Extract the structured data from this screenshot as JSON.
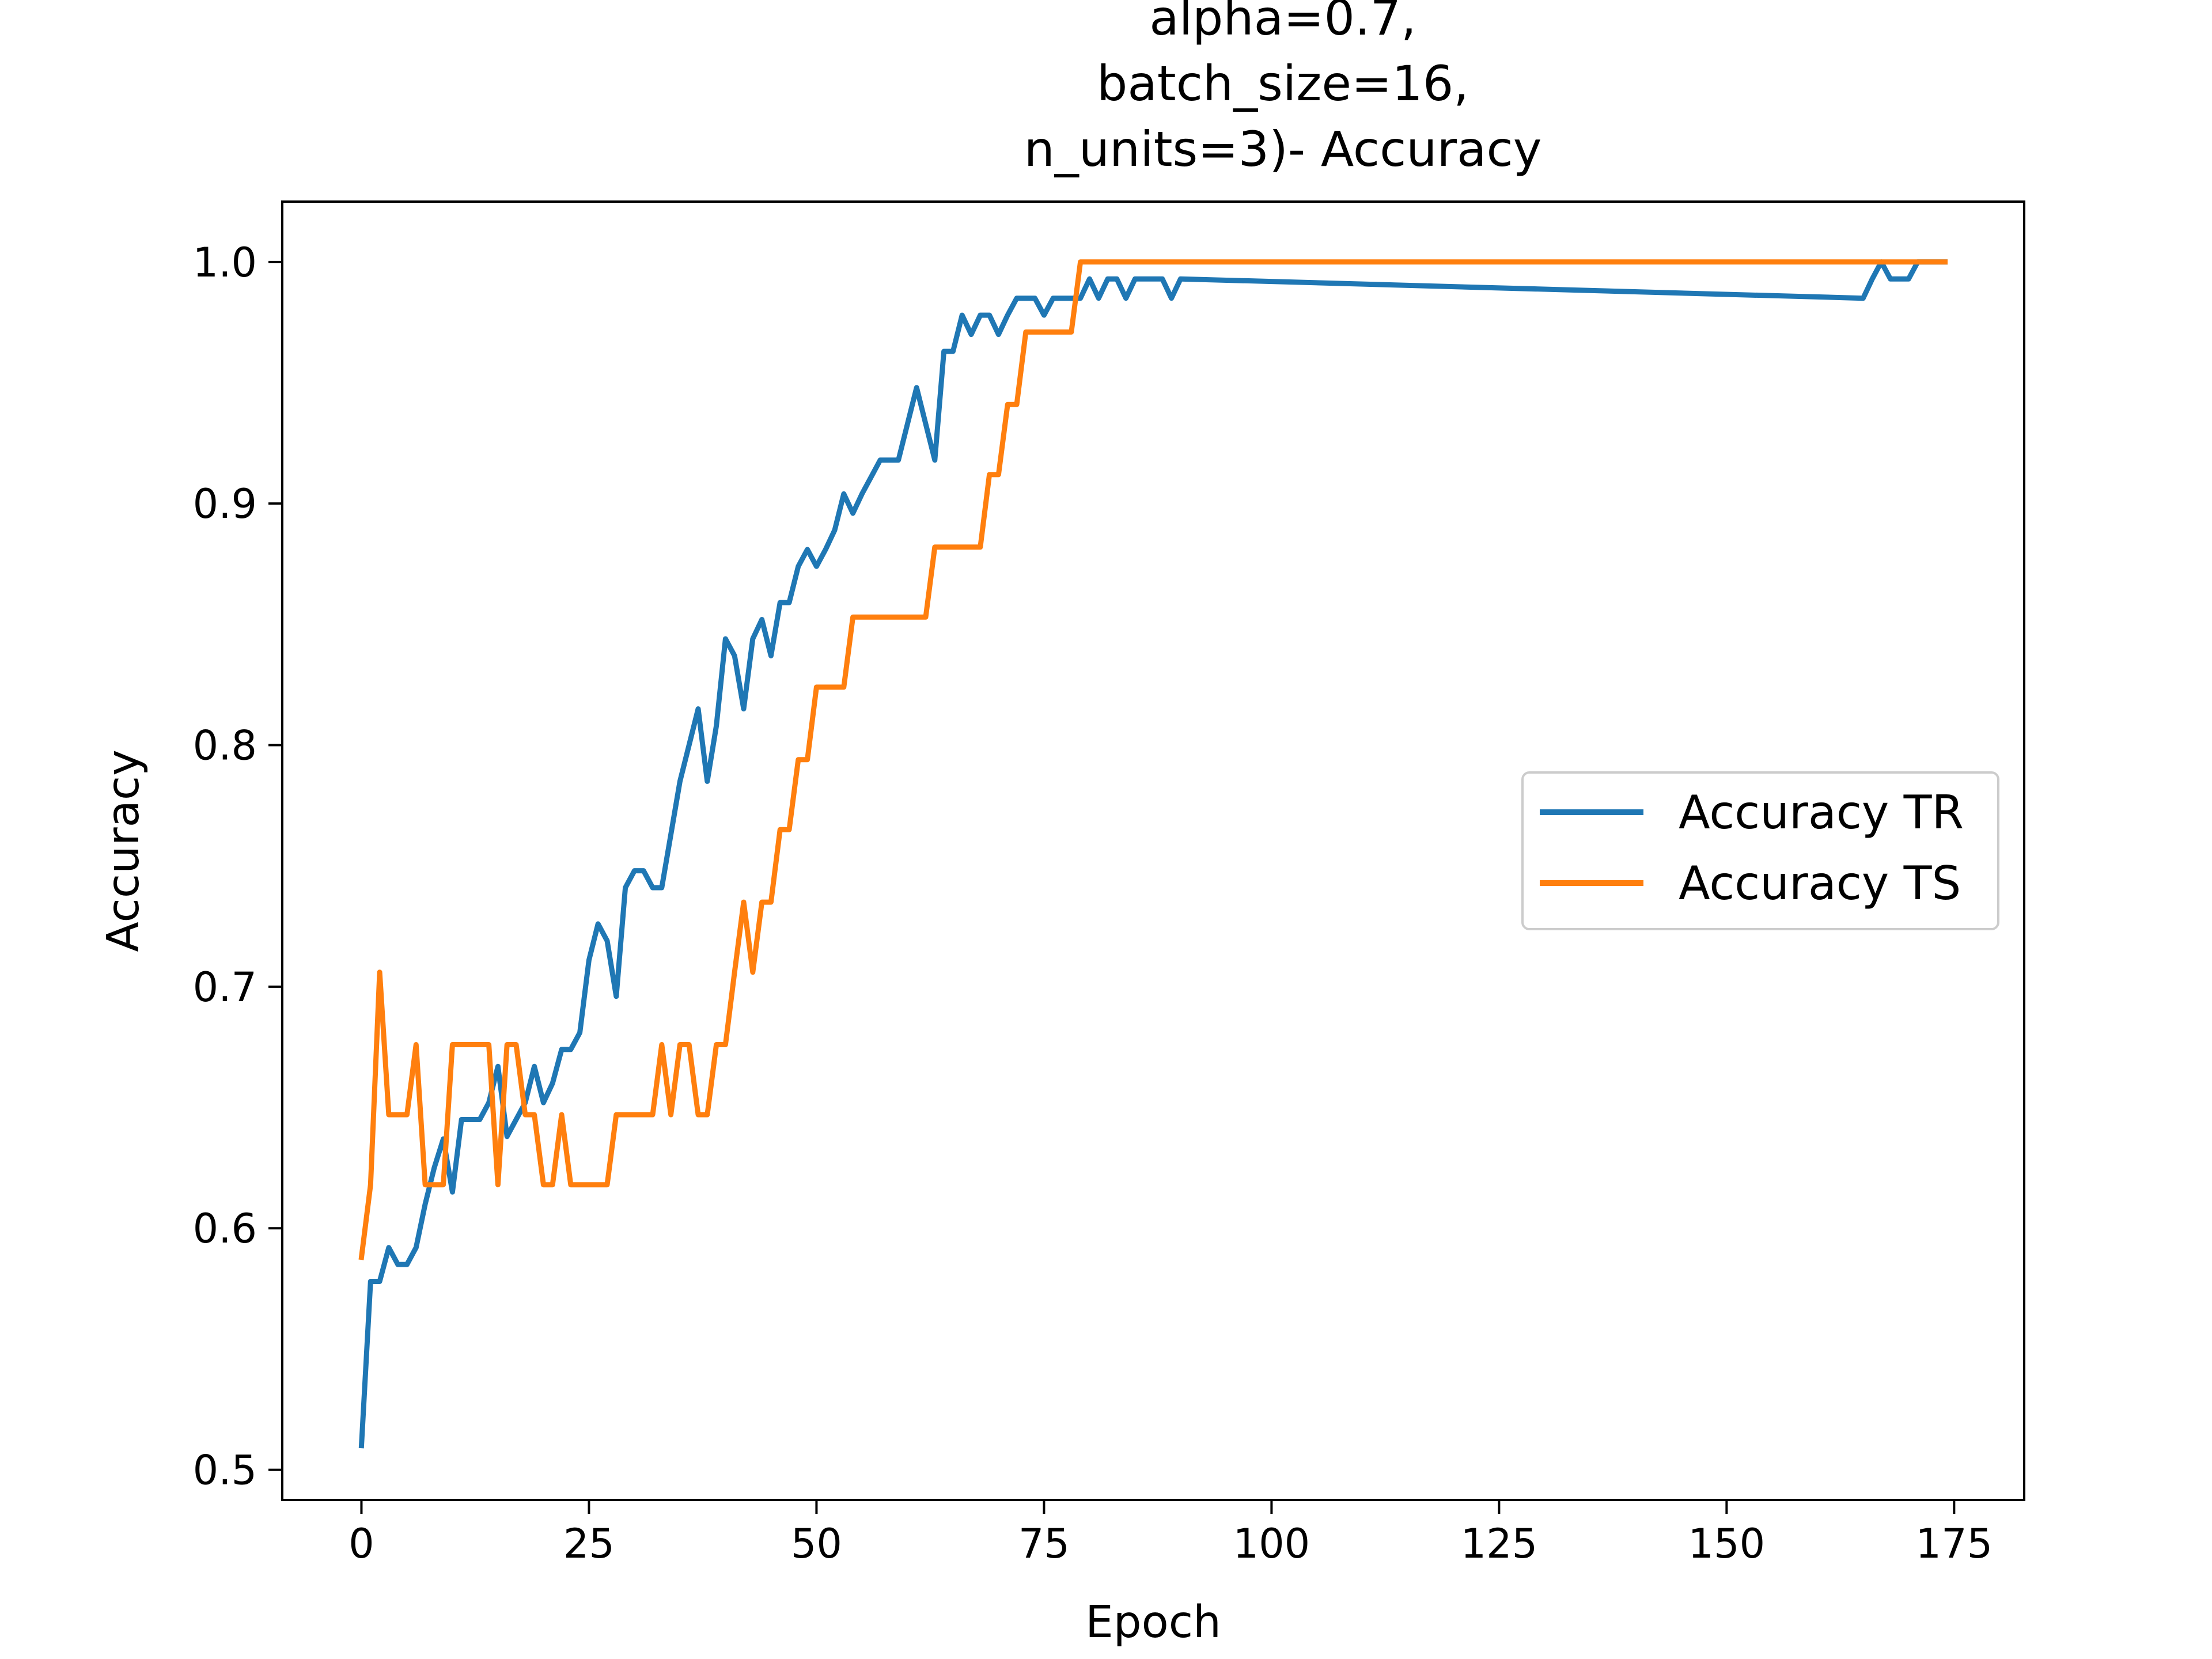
{
  "chart_data": {
    "type": "line",
    "title_lines": [
      "alpha=0.7,",
      "batch_size=16,",
      "n_units=3)- Accuracy"
    ],
    "xlabel": "Epoch",
    "ylabel": "Accuracy",
    "xlim": [
      -8.7,
      182.7
    ],
    "ylim": [
      0.4875,
      1.025
    ],
    "xticks": [
      0,
      25,
      50,
      75,
      100,
      125,
      150,
      175
    ],
    "xtick_labels": [
      "0",
      "25",
      "50",
      "75",
      "100",
      "125",
      "150",
      "175"
    ],
    "yticks": [
      0.5,
      0.6,
      0.7,
      0.8,
      0.9,
      1.0
    ],
    "ytick_labels": [
      "0.5",
      "0.6",
      "0.7",
      "0.8",
      "0.9",
      "1.0"
    ],
    "grid": false,
    "legend_position": "center-right",
    "series": [
      {
        "name": "Accuracy TR",
        "color": "#1f77b4",
        "x": [
          0,
          1,
          2,
          3,
          4,
          5,
          6,
          7,
          8,
          9,
          10,
          11,
          12,
          13,
          14,
          15,
          16,
          17,
          18,
          19,
          20,
          21,
          22,
          23,
          24,
          25,
          26,
          27,
          28,
          29,
          30,
          31,
          32,
          33,
          34,
          35,
          36,
          37,
          38,
          39,
          40,
          41,
          42,
          43,
          44,
          45,
          46,
          47,
          48,
          49,
          50,
          51,
          52,
          53,
          54,
          55,
          56,
          57,
          58,
          59,
          60,
          61,
          62,
          63,
          64,
          65,
          66,
          67,
          68,
          69,
          70,
          71,
          72,
          73,
          74,
          75,
          76,
          77,
          78,
          79,
          80,
          81,
          82,
          83,
          84,
          85,
          86,
          87,
          88,
          89,
          90,
          165,
          166,
          167,
          168,
          169,
          170,
          171,
          172,
          173,
          174
        ],
        "y": [
          0.51,
          0.578,
          0.578,
          0.592,
          0.585,
          0.585,
          0.592,
          0.61,
          0.625,
          0.637,
          0.615,
          0.645,
          0.645,
          0.645,
          0.652,
          0.667,
          0.638,
          0.645,
          0.652,
          0.667,
          0.652,
          0.66,
          0.674,
          0.674,
          0.681,
          0.711,
          0.726,
          0.719,
          0.696,
          0.741,
          0.748,
          0.748,
          0.741,
          0.741,
          0.763,
          0.785,
          0.8,
          0.815,
          0.785,
          0.808,
          0.844,
          0.837,
          0.815,
          0.844,
          0.852,
          0.837,
          0.859,
          0.859,
          0.874,
          0.881,
          0.874,
          0.881,
          0.889,
          0.904,
          0.896,
          0.904,
          0.911,
          0.918,
          0.918,
          0.918,
          0.933,
          0.948,
          0.933,
          0.918,
          0.963,
          0.963,
          0.978,
          0.97,
          0.978,
          0.978,
          0.97,
          0.978,
          0.985,
          0.985,
          0.985,
          0.978,
          0.985,
          0.985,
          0.985,
          0.985,
          0.993,
          0.985,
          0.993,
          0.993,
          0.985,
          0.993,
          0.993,
          0.993,
          0.993,
          0.985,
          0.993,
          0.985,
          0.993,
          1.0,
          0.993,
          0.993,
          0.993,
          1.0,
          1.0,
          1.0,
          1.0
        ]
      },
      {
        "name": "Accuracy TS",
        "color": "#ff7f0e",
        "x": [
          0,
          1,
          2,
          3,
          4,
          5,
          6,
          7,
          8,
          9,
          10,
          11,
          12,
          13,
          14,
          15,
          16,
          17,
          18,
          19,
          20,
          21,
          22,
          23,
          24,
          25,
          26,
          27,
          28,
          29,
          30,
          31,
          32,
          33,
          34,
          35,
          36,
          37,
          38,
          39,
          40,
          41,
          42,
          43,
          44,
          45,
          46,
          47,
          48,
          49,
          50,
          51,
          52,
          53,
          54,
          55,
          56,
          57,
          58,
          59,
          60,
          61,
          62,
          63,
          64,
          65,
          66,
          67,
          68,
          69,
          70,
          71,
          72,
          73,
          74,
          75,
          76,
          77,
          78,
          79,
          80,
          174
        ],
        "y": [
          0.588,
          0.618,
          0.706,
          0.647,
          0.647,
          0.647,
          0.676,
          0.618,
          0.618,
          0.618,
          0.676,
          0.676,
          0.676,
          0.676,
          0.676,
          0.618,
          0.676,
          0.676,
          0.647,
          0.647,
          0.618,
          0.618,
          0.647,
          0.618,
          0.618,
          0.618,
          0.618,
          0.618,
          0.647,
          0.647,
          0.647,
          0.647,
          0.647,
          0.676,
          0.647,
          0.676,
          0.676,
          0.647,
          0.647,
          0.676,
          0.676,
          0.706,
          0.735,
          0.706,
          0.735,
          0.735,
          0.765,
          0.765,
          0.794,
          0.794,
          0.824,
          0.824,
          0.824,
          0.824,
          0.853,
          0.853,
          0.853,
          0.853,
          0.853,
          0.853,
          0.853,
          0.853,
          0.853,
          0.882,
          0.882,
          0.882,
          0.882,
          0.882,
          0.882,
          0.912,
          0.912,
          0.941,
          0.941,
          0.971,
          0.971,
          0.971,
          0.971,
          0.971,
          0.971,
          1.0,
          1.0,
          1.0
        ]
      }
    ]
  }
}
